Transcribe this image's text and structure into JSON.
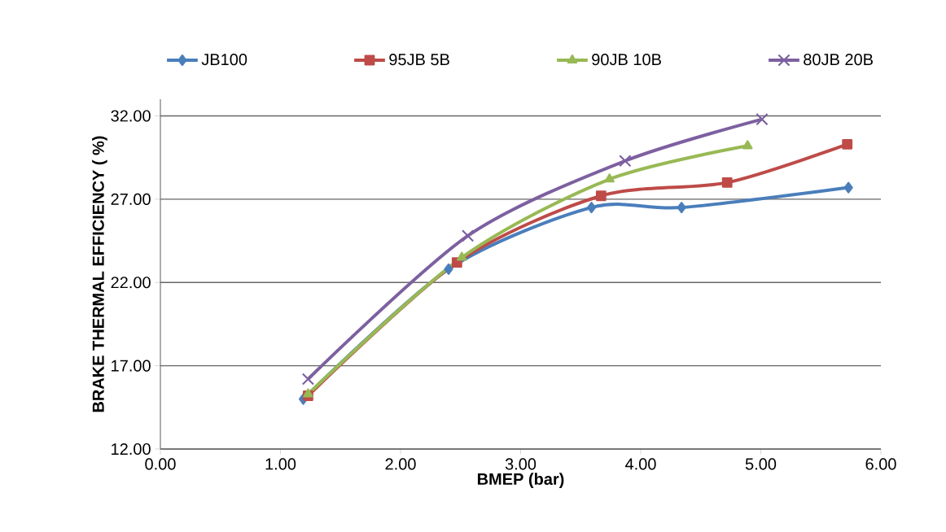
{
  "chart_data": {
    "type": "line",
    "xlabel": "BMEP (bar)",
    "ylabel": "BRAKE THERMAL EFFICIENCY ( %)",
    "xlim": [
      0,
      6
    ],
    "xticks": [
      {
        "value": 0,
        "label": "0.00"
      },
      {
        "value": 1,
        "label": "1.00"
      },
      {
        "value": 2,
        "label": "2.00"
      },
      {
        "value": 3,
        "label": "3.00"
      },
      {
        "value": 4,
        "label": "4.00"
      },
      {
        "value": 5,
        "label": "5.00"
      },
      {
        "value": 6,
        "label": "6.00"
      }
    ],
    "ylim": [
      12,
      33
    ],
    "yticks": [
      {
        "value": 12,
        "label": "12.00"
      },
      {
        "value": 17,
        "label": "17.00"
      },
      {
        "value": 22,
        "label": "22.00"
      },
      {
        "value": 27,
        "label": "27.00"
      },
      {
        "value": 32,
        "label": "32.00"
      }
    ],
    "grid": "y",
    "legend": "top",
    "series": [
      {
        "name": "JB100",
        "color": "#4a7ebb",
        "marker": "diamond",
        "x": [
          1.19,
          2.4,
          3.59,
          4.34,
          5.73
        ],
        "values": [
          15.0,
          22.8,
          26.5,
          26.5,
          27.7
        ]
      },
      {
        "name": "95JB 5B",
        "color": "#be4b48",
        "marker": "square",
        "x": [
          1.23,
          2.47,
          3.67,
          4.72,
          5.72
        ],
        "values": [
          15.2,
          23.2,
          27.2,
          28.0,
          30.3
        ]
      },
      {
        "name": "90JB 10B",
        "color": "#98b954",
        "marker": "triangle",
        "x": [
          1.23,
          2.51,
          3.74,
          4.89
        ],
        "values": [
          15.3,
          23.5,
          28.2,
          30.2
        ]
      },
      {
        "name": "80JB 20B",
        "color": "#7d60a0",
        "marker": "cross",
        "x": [
          1.23,
          2.56,
          3.87,
          5.01
        ],
        "values": [
          16.2,
          24.8,
          29.3,
          31.8
        ]
      }
    ]
  }
}
